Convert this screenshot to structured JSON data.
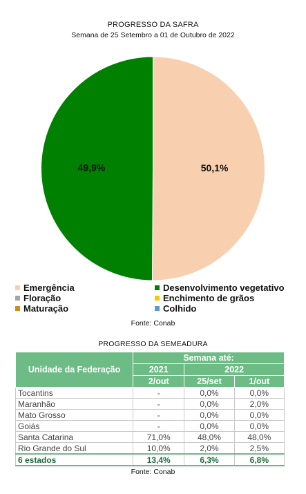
{
  "chart_data": {
    "type": "pie",
    "title": "PROGRESSO DA SAFRA",
    "subtitle": "Semana de 25 Setembro a 01 de Outubro de 2022",
    "slices": [
      {
        "label": "Emergência",
        "value": 50.1,
        "display": "50,1%",
        "color": "#f8cfaf"
      },
      {
        "label": "Desenvolvimento vegetativo",
        "value": 49.9,
        "display": "49,9%",
        "color": "#008000"
      }
    ],
    "legend": [
      {
        "label": "Emergência",
        "color": "#f8cfaf"
      },
      {
        "label": "Desenvolvimento vegetativo",
        "color": "#008000"
      },
      {
        "label": "Floração",
        "color": "#a5a5a5"
      },
      {
        "label": "Enchimento de grãos",
        "color": "#f5c800"
      },
      {
        "label": "Maturação",
        "color": "#d98a16"
      },
      {
        "label": "Colhido",
        "color": "#5b9bd5"
      }
    ],
    "legend_position": "bottom",
    "source": "Fonte: Conab"
  },
  "table": {
    "title": "PROGRESSO DA SEMEADURA",
    "header_uf": "Unidade da Federação",
    "header_group": "Semana até:",
    "year_a": "2021",
    "year_b": "2022",
    "col_a": "2/out",
    "col_b": "25/set",
    "col_c": "1/out",
    "rows": [
      {
        "uf": "Tocantins",
        "v2021": "-",
        "set25": "0,0%",
        "out1": "0,0%"
      },
      {
        "uf": "Maranhão",
        "v2021": "-",
        "set25": "0,0%",
        "out1": "2,0%"
      },
      {
        "uf": "Mato Grosso",
        "v2021": "-",
        "set25": "0,0%",
        "out1": "0,0%"
      },
      {
        "uf": "Goiás",
        "v2021": "-",
        "set25": "0,0%",
        "out1": "0,0%"
      },
      {
        "uf": "Santa Catarina",
        "v2021": "71,0%",
        "set25": "48,0%",
        "out1": "48,0%"
      },
      {
        "uf": "Rio Grande do Sul",
        "v2021": "10,0%",
        "set25": "2,0%",
        "out1": "2,5%"
      }
    ],
    "total": {
      "uf": "6 estados",
      "v2021": "13,4%",
      "set25": "6,3%",
      "out1": "6,8%"
    },
    "source": "Fonte: Conab"
  }
}
